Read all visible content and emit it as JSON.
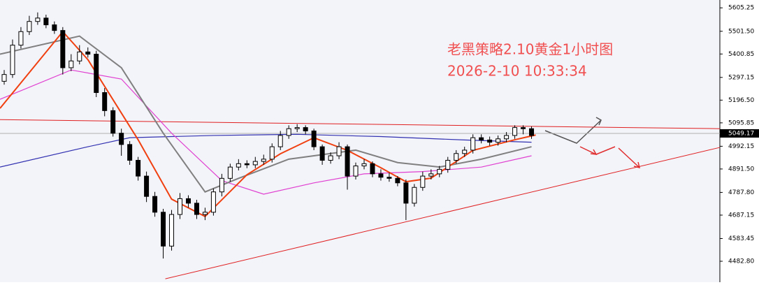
{
  "chart_data": {
    "type": "candlestick",
    "title": "老黑策略2.10黄金1小时图",
    "subtitle": "2026-2-10 10:33:34",
    "xlim": [
      -0.5,
      85.5
    ],
    "ylim": [
      4390,
      5640
    ],
    "yticks": [
      5605.25,
      {
        "value": 5501.5,
        "label": "5501.50"
      },
      5400.85,
      5297.15,
      {
        "value": 5196.5,
        "label": "5196.50"
      },
      5095.85,
      4992.15,
      {
        "value": 4891.5,
        "label": "4891.50"
      },
      {
        "value": 4787.8,
        "label": "4787.80"
      },
      4687.15,
      4583.45,
      {
        "value": 4482.8,
        "label": "4482.80"
      }
    ],
    "current_price": 5049.17,
    "candle_color": "#000000",
    "open": [
      5280,
      5310,
      5440,
      5500,
      5545,
      5560,
      5530,
      5505,
      5340,
      5370,
      5410,
      5400,
      5230,
      5150,
      5050,
      5000,
      4930,
      4860,
      4770,
      4700,
      4550,
      4690,
      4760,
      4740,
      4690,
      4700,
      4790,
      4850,
      4900,
      4915,
      4910,
      4925,
      4935,
      4990,
      5040,
      5070,
      5075,
      5060,
      4990,
      4930,
      4950,
      4990,
      4860,
      4905,
      4915,
      4870,
      4855,
      4850,
      4830,
      4740,
      4810,
      4860,
      4870,
      4890,
      4930,
      4960,
      4975,
      5030,
      5020,
      5010,
      5025,
      5040,
      5075,
      5070
    ],
    "high": [
      5330,
      5465,
      5520,
      5570,
      5585,
      5575,
      5545,
      5520,
      5400,
      5440,
      5430,
      5415,
      5250,
      5165,
      5070,
      5015,
      4945,
      4880,
      4790,
      4715,
      4710,
      4785,
      4775,
      4755,
      4720,
      4805,
      4870,
      4915,
      4935,
      4930,
      4945,
      4955,
      5005,
      5060,
      5085,
      5090,
      5085,
      5070,
      5000,
      4965,
      5010,
      5000,
      4920,
      4935,
      4925,
      4890,
      4875,
      4860,
      4845,
      4825,
      4880,
      4890,
      4905,
      4945,
      4975,
      4990,
      5045,
      5045,
      5035,
      5040,
      5055,
      5085,
      5085,
      5080
    ],
    "low": [
      5265,
      5295,
      5425,
      5485,
      5530,
      5515,
      5490,
      5310,
      5325,
      5355,
      5385,
      5210,
      5125,
      5035,
      4950,
      4910,
      4840,
      4745,
      4680,
      4495,
      4530,
      4670,
      4720,
      4670,
      4665,
      4685,
      4770,
      4835,
      4885,
      4895,
      4895,
      4910,
      4920,
      4975,
      5025,
      5055,
      5045,
      4975,
      4910,
      4915,
      4935,
      4800,
      4845,
      4890,
      4855,
      4840,
      4835,
      4815,
      4665,
      4725,
      4795,
      4845,
      4855,
      4875,
      4915,
      4945,
      4960,
      5005,
      4995,
      4995,
      5010,
      5025,
      5045,
      5025
    ],
    "close": [
      5310,
      5440,
      5500,
      5545,
      5560,
      5530,
      5505,
      5340,
      5370,
      5410,
      5400,
      5230,
      5150,
      5050,
      5000,
      4930,
      4860,
      4770,
      4700,
      4550,
      4690,
      4760,
      4740,
      4690,
      4700,
      4790,
      4850,
      4900,
      4915,
      4910,
      4925,
      4935,
      4990,
      5040,
      5070,
      5075,
      5060,
      4990,
      4930,
      4950,
      4990,
      4860,
      4905,
      4915,
      4870,
      4855,
      4850,
      4830,
      4740,
      4810,
      4860,
      4870,
      4890,
      4930,
      4960,
      4975,
      5030,
      5020,
      5010,
      5025,
      5040,
      5075,
      5070,
      5040
    ],
    "series": [
      {
        "color": "#3030b0",
        "x": [
          -0.5,
          10,
          15,
          25,
          35,
          45,
          55,
          63
        ],
        "values": [
          4900,
          4990,
          5030,
          5040,
          5045,
          5035,
          5020,
          5010
        ]
      },
      {
        "color": "#e040d0",
        "x": [
          -0.5,
          8,
          14,
          20,
          26,
          31,
          37,
          43,
          50,
          57,
          63
        ],
        "values": [
          5200,
          5330,
          5290,
          5050,
          4840,
          4780,
          4830,
          4870,
          4880,
          4900,
          4950
        ]
      },
      {
        "color": "#808080",
        "x": [
          -0.5,
          9,
          14,
          19,
          24,
          28,
          34,
          39,
          42,
          47,
          52,
          57,
          63
        ],
        "values": [
          5400,
          5480,
          5340,
          5050,
          4790,
          4850,
          4935,
          4960,
          4975,
          4920,
          4900,
          4935,
          4990
        ]
      },
      {
        "color": "#f04010",
        "x": [
          -0.5,
          7,
          10,
          16,
          20,
          24,
          29,
          33,
          37,
          41,
          45,
          48,
          51,
          56,
          61,
          63.5
        ],
        "values": [
          5160,
          5500,
          5376,
          5021,
          4758,
          4681,
          4866,
          4959,
          5030,
          4974,
          4897,
          4835,
          4851,
          4974,
          5021,
          5042
        ]
      }
    ],
    "trendlines": [
      {
        "color": "#e02020",
        "x": [
          -0.5,
          85.5
        ],
        "values": [
          5110,
          5070
        ]
      },
      {
        "color": "#e02020",
        "x": [
          19.25,
          85.5
        ],
        "values": [
          4405,
          4987
        ]
      }
    ]
  }
}
